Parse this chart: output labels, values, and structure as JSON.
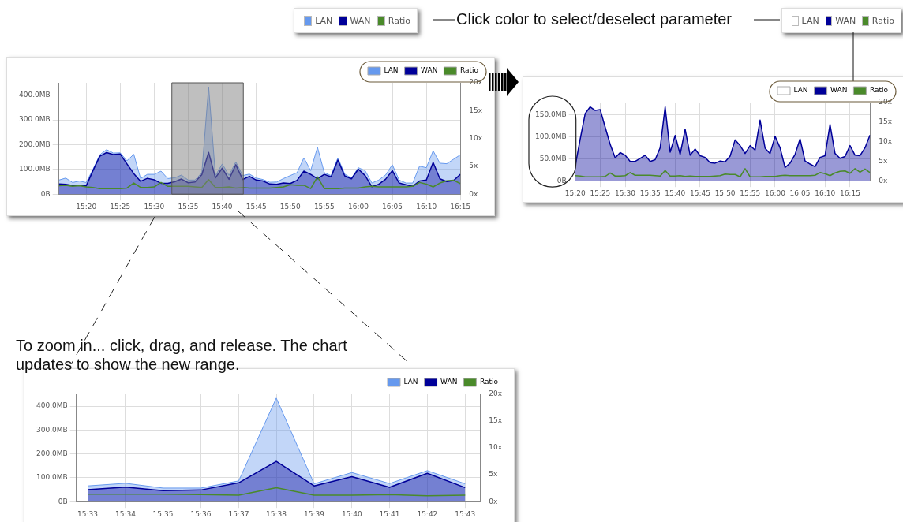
{
  "chart_data": [
    {
      "type": "area",
      "legend": "top right",
      "grid": true,
      "x": [
        15.2667,
        15.2833,
        15.3,
        15.3167,
        15.3333,
        15.35,
        15.3667,
        15.3833,
        15.4,
        15.4167,
        15.4333,
        15.45,
        15.4667,
        15.4833,
        15.5,
        15.5167,
        15.5333,
        15.55,
        15.5667,
        15.5833,
        15.6,
        15.6167,
        15.6333,
        15.65,
        15.6667,
        15.6833,
        15.7,
        15.7167,
        15.7333,
        15.75,
        15.7667,
        15.7833,
        15.8,
        15.8167,
        15.8333,
        15.85,
        15.8667,
        15.8833,
        15.9,
        15.9167,
        15.9333,
        15.95,
        15.9667,
        15.9833,
        16,
        16.0167,
        16.0333,
        16.05,
        16.0667,
        16.0833,
        16.1,
        16.1167,
        16.1333,
        16.15,
        16.1667,
        16.1833,
        16.2,
        16.2167,
        16.2333,
        16.25
      ],
      "xlim": [
        15.2667,
        16.25
      ],
      "xticks": [
        {
          "value": 15.3333,
          "label": "15:20"
        },
        {
          "value": 15.4167,
          "label": "15:25"
        },
        {
          "value": 15.5,
          "label": "15:30"
        },
        {
          "value": 15.5833,
          "label": "15:35"
        },
        {
          "value": 15.6667,
          "label": "15:40"
        },
        {
          "value": 15.75,
          "label": "15:45"
        },
        {
          "value": 15.8333,
          "label": "15:50"
        },
        {
          "value": 15.9167,
          "label": "15:55"
        },
        {
          "value": 16,
          "label": "16:00"
        },
        {
          "value": 16.0833,
          "label": "16:05"
        },
        {
          "value": 16.1667,
          "label": "16:10"
        },
        {
          "value": 16.25,
          "label": "16:15"
        }
      ],
      "ylim": [
        0,
        450
      ],
      "yticks": [
        {
          "value": 0,
          "label": "0B"
        },
        {
          "value": 100,
          "label": "100.0MB"
        },
        {
          "value": 200,
          "label": "200.0MB"
        },
        {
          "value": 300,
          "label": "300.0MB"
        },
        {
          "value": 400,
          "label": "400.0MB"
        }
      ],
      "y2lim": [
        0,
        20
      ],
      "y2ticks": [
        {
          "value": 0,
          "label": "0x"
        },
        {
          "value": 5,
          "label": "5x"
        },
        {
          "value": 10,
          "label": "10x"
        },
        {
          "value": 15,
          "label": "15x"
        },
        {
          "value": 20,
          "label": "20x"
        }
      ],
      "bands": [
        {
          "axis": "x",
          "from": 15.5433,
          "to": 15.7183,
          "color": "#808080"
        }
      ],
      "series": [
        {
          "name": "LAN",
          "color": "#6699ee",
          "values": [
            57,
            65,
            47,
            53,
            47,
            100,
            159,
            180,
            166,
            167,
            135,
            161,
            63,
            80,
            80,
            93,
            63,
            66,
            77,
            57,
            57,
            87,
            434,
            75,
            122,
            76,
            130,
            75,
            81,
            65,
            59,
            48,
            49,
            63,
            75,
            87,
            147,
            95,
            189,
            87,
            75,
            147,
            81,
            65,
            107,
            95,
            45,
            57,
            77,
            119,
            57,
            45,
            45,
            113,
            107,
            175,
            125,
            123,
            141,
            159
          ]
        },
        {
          "name": "WAN",
          "color": "#000099",
          "values": [
            41,
            40,
            35,
            36,
            33,
            95,
            153,
            168,
            160,
            162,
            122,
            83,
            52,
            64,
            58,
            44,
            44,
            50,
            61,
            46,
            49,
            79,
            169,
            66,
            105,
            60,
            119,
            59,
            72,
            57,
            53,
            41,
            40,
            45,
            43,
            56,
            93,
            80,
            62,
            80,
            70,
            138,
            74,
            62,
            101,
            75,
            30,
            40,
            60,
            95,
            45,
            38,
            32,
            53,
            57,
            128,
            62,
            51,
            55,
            80
          ]
        },
        {
          "name": "Ratio",
          "color": "#4a8a2a",
          "type": "line",
          "axis": "y2",
          "values": [
            1.5,
            1.6,
            1.4,
            1.5,
            1.3,
            1.2,
            1.0,
            1.0,
            1.0,
            1.0,
            1.1,
            2.0,
            1.2,
            1.2,
            1.3,
            2.1,
            1.4,
            1.4,
            1.4,
            1.4,
            1.3,
            1.2,
            2.6,
            1.2,
            1.2,
            1.3,
            1.1,
            1.2,
            1.1,
            1.1,
            1.1,
            1.1,
            1.2,
            1.3,
            1.7,
            1.6,
            1.6,
            1.0,
            3.1,
            1.0,
            1.0,
            1.0,
            1.1,
            1.1,
            1.1,
            1.3,
            1.4,
            1.3,
            1.3,
            1.3,
            1.3,
            1.3,
            1.4,
            2.1,
            1.8,
            1.3,
            2.0,
            2.4,
            2.5,
            1.9
          ]
        }
      ]
    },
    {
      "type": "area",
      "legend": "top right",
      "grid": true,
      "annotations": [
        "Click color to select/deselect parameter"
      ],
      "x": [
        15.3333,
        15.35,
        15.3667,
        15.3833,
        15.4,
        15.4167,
        15.4333,
        15.45,
        15.4667,
        15.4833,
        15.5,
        15.5167,
        15.5333,
        15.55,
        15.5667,
        15.5833,
        15.6,
        15.6167,
        15.6333,
        15.65,
        15.6667,
        15.6833,
        15.7,
        15.7167,
        15.7333,
        15.75,
        15.7667,
        15.7833,
        15.8,
        15.8167,
        15.8333,
        15.85,
        15.8667,
        15.8833,
        15.9,
        15.9167,
        15.9333,
        15.95,
        15.9667,
        15.9833,
        16,
        16.0167,
        16.0333,
        16.05,
        16.0667,
        16.0833,
        16.1,
        16.1167,
        16.1333,
        16.15,
        16.1667,
        16.1833,
        16.2,
        16.2167,
        16.2333,
        16.25,
        16.2667,
        16.2833,
        16.3,
        16.3167
      ],
      "xlim": [
        15.3333,
        16.3167
      ],
      "xticks": [
        {
          "value": 15.3333,
          "label": "15:20"
        },
        {
          "value": 15.4167,
          "label": "15:25"
        },
        {
          "value": 15.5,
          "label": "15:30"
        },
        {
          "value": 15.5833,
          "label": "15:35"
        },
        {
          "value": 15.6667,
          "label": "15:40"
        },
        {
          "value": 15.75,
          "label": "15:45"
        },
        {
          "value": 15.8333,
          "label": "15:50"
        },
        {
          "value": 15.9167,
          "label": "15:55"
        },
        {
          "value": 16,
          "label": "16:00"
        },
        {
          "value": 16.0833,
          "label": "16:05"
        },
        {
          "value": 16.1667,
          "label": "16:10"
        },
        {
          "value": 16.25,
          "label": "16:15"
        }
      ],
      "ylim": [
        0,
        178
      ],
      "yticks": [
        {
          "value": 0,
          "label": "0B"
        },
        {
          "value": 50,
          "label": "50.0MB"
        },
        {
          "value": 100,
          "label": "100.0MB"
        },
        {
          "value": 150,
          "label": "150.0MB"
        }
      ],
      "y2lim": [
        0,
        20
      ],
      "y2ticks": [
        {
          "value": 0,
          "label": "0x"
        },
        {
          "value": 5,
          "label": "5x"
        },
        {
          "value": 10,
          "label": "10x"
        },
        {
          "value": 15,
          "label": "15x"
        },
        {
          "value": 20,
          "label": "20x"
        }
      ],
      "series": [
        {
          "name": "LAN",
          "color": "#ffffff",
          "values": [
            null,
            null,
            null,
            null,
            null,
            null,
            null,
            null,
            null,
            null,
            null,
            null,
            null,
            null,
            null,
            null,
            null,
            null,
            null,
            null,
            null,
            null,
            null,
            null,
            null,
            null,
            null,
            null,
            null,
            null,
            null,
            null,
            null,
            null,
            null,
            null,
            null,
            null,
            null,
            null,
            null,
            null,
            null,
            null,
            null,
            null,
            null,
            null,
            null,
            null,
            null,
            null,
            null,
            null,
            null,
            null,
            null,
            null,
            null,
            null
          ]
        },
        {
          "name": "WAN",
          "color": "#000099",
          "values": [
            33,
            95,
            153,
            168,
            160,
            162,
            122,
            83,
            52,
            64,
            58,
            44,
            44,
            51,
            58,
            44,
            48,
            75,
            168,
            65,
            103,
            60,
            117,
            58,
            72,
            57,
            53,
            41,
            40,
            45,
            43,
            56,
            93,
            80,
            62,
            80,
            70,
            138,
            74,
            62,
            101,
            75,
            30,
            40,
            60,
            95,
            45,
            38,
            32,
            53,
            57,
            128,
            62,
            51,
            55,
            80,
            58,
            57,
            75,
            104
          ]
        },
        {
          "name": "Ratio",
          "color": "#4a8a2a",
          "type": "line",
          "axis": "y2",
          "values": [
            1.3,
            1.2,
            1.0,
            1.0,
            1.0,
            1.0,
            1.1,
            2.0,
            1.2,
            1.2,
            1.3,
            2.1,
            1.4,
            1.4,
            1.4,
            1.4,
            1.3,
            1.2,
            2.6,
            1.2,
            1.2,
            1.3,
            1.1,
            1.2,
            1.1,
            1.1,
            1.1,
            1.1,
            1.2,
            1.3,
            1.7,
            1.6,
            1.6,
            1.0,
            3.1,
            1.0,
            1.0,
            1.0,
            1.1,
            1.1,
            1.1,
            1.3,
            1.4,
            1.3,
            1.3,
            1.3,
            1.3,
            1.3,
            1.4,
            2.1,
            1.8,
            1.3,
            2.0,
            2.4,
            2.5,
            1.9,
            3.1,
            2.2,
            3.0,
            2.1
          ]
        }
      ]
    },
    {
      "type": "area",
      "legend": "top right",
      "grid": true,
      "annotations": [
        "To zoom in... click, drag, and release. The chart updates to show the new range."
      ],
      "x": [
        15.55,
        15.5667,
        15.5833,
        15.6,
        15.6167,
        15.6333,
        15.65,
        15.6667,
        15.6833,
        15.7,
        15.7167
      ],
      "xlim": [
        15.545,
        15.7233
      ],
      "xticks": [
        {
          "value": 15.55,
          "label": "15:33"
        },
        {
          "value": 15.5667,
          "label": "15:34"
        },
        {
          "value": 15.5833,
          "label": "15:35"
        },
        {
          "value": 15.6,
          "label": "15:36"
        },
        {
          "value": 15.6167,
          "label": "15:37"
        },
        {
          "value": 15.6333,
          "label": "15:38"
        },
        {
          "value": 15.65,
          "label": "15:39"
        },
        {
          "value": 15.6667,
          "label": "15:40"
        },
        {
          "value": 15.6833,
          "label": "15:41"
        },
        {
          "value": 15.7,
          "label": "15:42"
        },
        {
          "value": 15.7167,
          "label": "15:43"
        }
      ],
      "ylim": [
        0,
        450
      ],
      "yticks": [
        {
          "value": 0,
          "label": "0B"
        },
        {
          "value": 100,
          "label": "100.0MB"
        },
        {
          "value": 200,
          "label": "200.0MB"
        },
        {
          "value": 300,
          "label": "300.0MB"
        },
        {
          "value": 400,
          "label": "400.0MB"
        }
      ],
      "y2lim": [
        0,
        20
      ],
      "y2ticks": [
        {
          "value": 0,
          "label": "0x"
        },
        {
          "value": 5,
          "label": "5x"
        },
        {
          "value": 10,
          "label": "10x"
        },
        {
          "value": 15,
          "label": "15x"
        },
        {
          "value": 20,
          "label": "20x"
        }
      ],
      "series": [
        {
          "name": "LAN",
          "color": "#6699ee",
          "values": [
            66,
            77,
            57,
            57,
            87,
            434,
            75,
            122,
            76,
            130,
            75
          ]
        },
        {
          "name": "WAN",
          "color": "#000099",
          "values": [
            50,
            61,
            46,
            49,
            79,
            169,
            66,
            105,
            60,
            119,
            59
          ]
        },
        {
          "name": "Ratio",
          "color": "#4a8a2a",
          "type": "line",
          "axis": "y2",
          "values": [
            1.4,
            1.4,
            1.4,
            1.3,
            1.2,
            2.6,
            1.2,
            1.2,
            1.3,
            1.1,
            1.2
          ]
        }
      ]
    }
  ]
}
